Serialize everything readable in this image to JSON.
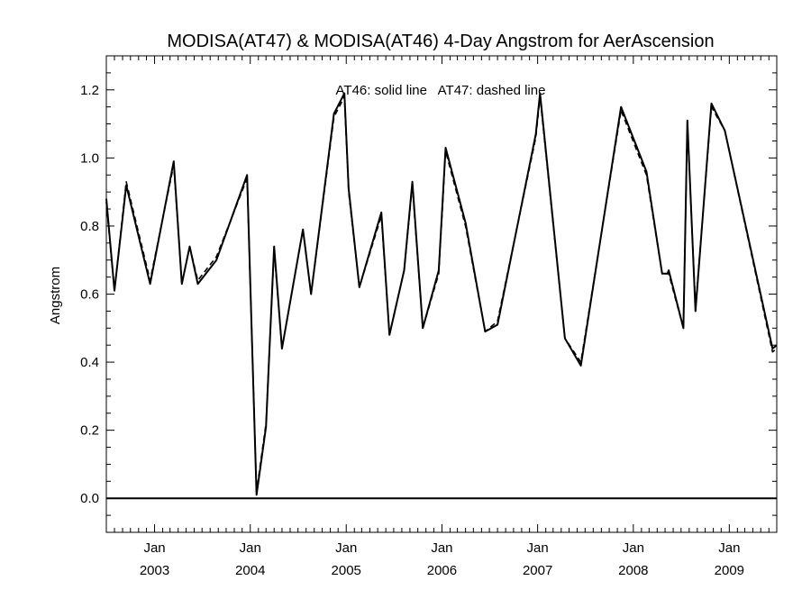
{
  "chart_data": {
    "type": "line",
    "title": "MODISA(AT47) & MODISA(AT46) 4-Day Angstrom for AerAscension",
    "ylabel": "Angstrom",
    "xlabel": "",
    "annotation": "AT46: solid line   AT47: dashed line",
    "xlim": [
      "2002-07-01",
      "2009-07-01"
    ],
    "ylim": [
      -0.1,
      1.3
    ],
    "y_ticks": [
      "0.0",
      "0.2",
      "0.4",
      "0.6",
      "0.8",
      "1.0",
      "1.2"
    ],
    "x_ticks": [
      {
        "month": "Jan",
        "year": "2003",
        "date": "2003-01-01"
      },
      {
        "month": "Jan",
        "year": "2004",
        "date": "2004-01-01"
      },
      {
        "month": "Jan",
        "year": "2005",
        "date": "2005-01-01"
      },
      {
        "month": "Jan",
        "year": "2006",
        "date": "2006-01-01"
      },
      {
        "month": "Jan",
        "year": "2007",
        "date": "2007-01-01"
      },
      {
        "month": "Jan",
        "year": "2008",
        "date": "2008-01-01"
      },
      {
        "month": "Jan",
        "year": "2009",
        "date": "2009-01-01"
      }
    ],
    "zero_line": 0.0,
    "series": [
      {
        "name": "AT46",
        "style": "solid",
        "color": "#000000",
        "points": [
          [
            "2002-07-01",
            0.88
          ],
          [
            "2002-08-01",
            0.61
          ],
          [
            "2002-09-15",
            0.92
          ],
          [
            "2002-12-15",
            0.63
          ],
          [
            "2003-03-15",
            0.99
          ],
          [
            "2003-04-15",
            0.63
          ],
          [
            "2003-05-15",
            0.74
          ],
          [
            "2003-06-15",
            0.63
          ],
          [
            "2003-08-25",
            0.7
          ],
          [
            "2003-12-20",
            0.95
          ],
          [
            "2004-01-25",
            0.01
          ],
          [
            "2004-03-01",
            0.21
          ],
          [
            "2004-04-01",
            0.74
          ],
          [
            "2004-05-01",
            0.44
          ],
          [
            "2004-07-20",
            0.79
          ],
          [
            "2004-08-20",
            0.6
          ],
          [
            "2004-11-15",
            1.13
          ],
          [
            "2004-12-25",
            1.19
          ],
          [
            "2005-01-10",
            0.91
          ],
          [
            "2005-02-20",
            0.62
          ],
          [
            "2005-05-15",
            0.84
          ],
          [
            "2005-06-15",
            0.48
          ],
          [
            "2005-08-10",
            0.67
          ],
          [
            "2005-09-10",
            0.93
          ],
          [
            "2005-10-20",
            0.5
          ],
          [
            "2005-12-20",
            0.67
          ],
          [
            "2006-01-15",
            1.03
          ],
          [
            "2006-04-01",
            0.81
          ],
          [
            "2006-06-15",
            0.49
          ],
          [
            "2006-08-01",
            0.51
          ],
          [
            "2006-12-25",
            1.07
          ],
          [
            "2007-01-10",
            1.19
          ],
          [
            "2007-04-15",
            0.47
          ],
          [
            "2007-06-15",
            0.39
          ],
          [
            "2007-11-15",
            1.15
          ],
          [
            "2008-02-20",
            0.96
          ],
          [
            "2008-04-20",
            0.66
          ],
          [
            "2008-05-10",
            0.66
          ],
          [
            "2008-05-15",
            0.67
          ],
          [
            "2008-07-10",
            0.5
          ],
          [
            "2008-07-25",
            1.11
          ],
          [
            "2008-08-25",
            0.55
          ],
          [
            "2008-10-25",
            1.16
          ],
          [
            "2008-12-15",
            1.08
          ],
          [
            "2009-06-15",
            0.44
          ],
          [
            "2009-07-01",
            0.45
          ]
        ]
      },
      {
        "name": "AT47",
        "style": "dashed",
        "color": "#000000",
        "points": [
          [
            "2002-07-01",
            0.87
          ],
          [
            "2002-08-01",
            0.61
          ],
          [
            "2002-09-15",
            0.93
          ],
          [
            "2002-12-15",
            0.64
          ],
          [
            "2003-03-15",
            0.98
          ],
          [
            "2003-04-15",
            0.63
          ],
          [
            "2003-05-15",
            0.74
          ],
          [
            "2003-06-15",
            0.64
          ],
          [
            "2003-08-25",
            0.71
          ],
          [
            "2003-12-20",
            0.94
          ],
          [
            "2004-01-25",
            0.02
          ],
          [
            "2004-03-01",
            0.22
          ],
          [
            "2004-04-01",
            0.73
          ],
          [
            "2004-05-01",
            0.44
          ],
          [
            "2004-07-20",
            0.79
          ],
          [
            "2004-08-20",
            0.6
          ],
          [
            "2004-11-15",
            1.12
          ],
          [
            "2004-12-25",
            1.18
          ],
          [
            "2005-01-10",
            0.9
          ],
          [
            "2005-02-20",
            0.62
          ],
          [
            "2005-05-15",
            0.83
          ],
          [
            "2005-06-15",
            0.48
          ],
          [
            "2005-08-10",
            0.67
          ],
          [
            "2005-09-10",
            0.92
          ],
          [
            "2005-10-20",
            0.5
          ],
          [
            "2005-12-20",
            0.66
          ],
          [
            "2006-01-15",
            1.02
          ],
          [
            "2006-04-01",
            0.8
          ],
          [
            "2006-06-15",
            0.49
          ],
          [
            "2006-08-01",
            0.52
          ],
          [
            "2006-12-25",
            1.06
          ],
          [
            "2007-01-10",
            1.18
          ],
          [
            "2007-04-15",
            0.47
          ],
          [
            "2007-06-15",
            0.4
          ],
          [
            "2007-11-15",
            1.14
          ],
          [
            "2008-02-20",
            0.95
          ],
          [
            "2008-04-20",
            0.66
          ],
          [
            "2008-05-10",
            0.66
          ],
          [
            "2008-05-15",
            0.66
          ],
          [
            "2008-07-10",
            0.5
          ],
          [
            "2008-07-25",
            1.1
          ],
          [
            "2008-08-25",
            0.56
          ],
          [
            "2008-10-25",
            1.15
          ],
          [
            "2008-12-15",
            1.08
          ],
          [
            "2009-06-15",
            0.43
          ],
          [
            "2009-07-01",
            0.44
          ]
        ]
      }
    ]
  }
}
